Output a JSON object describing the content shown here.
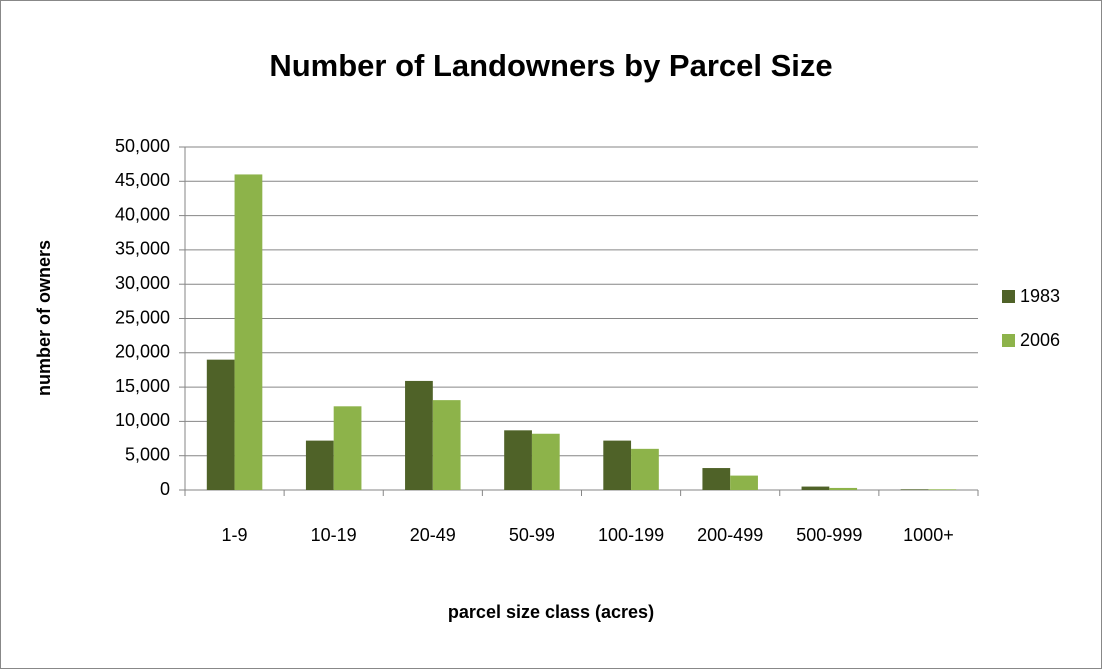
{
  "chart_data": {
    "type": "bar",
    "title": "Number of Landowners by Parcel Size",
    "x_label": "parcel size class (acres)",
    "y_label": "number of owners",
    "categories": [
      "1-9",
      "10-19",
      "20-49",
      "50-99",
      "100-199",
      "200-499",
      "500-999",
      "1000+"
    ],
    "series": [
      {
        "name": "1983",
        "color": "#4f6228",
        "values": [
          19000,
          7200,
          15900,
          8700,
          7200,
          3200,
          500,
          100
        ]
      },
      {
        "name": "2006",
        "color": "#8db34a",
        "values": [
          46000,
          12200,
          13100,
          8200,
          6000,
          2100,
          300,
          100
        ]
      }
    ],
    "ylim": [
      0,
      50000
    ],
    "yticks": [
      0,
      {
        "value": 5000,
        "label": "5,000"
      },
      {
        "value": 10000,
        "label": "10,000"
      },
      {
        "value": 15000,
        "label": "15,000"
      },
      {
        "value": 20000,
        "label": "20,000"
      },
      {
        "value": 25000,
        "label": "25,000"
      },
      {
        "value": 30000,
        "label": "30,000"
      },
      {
        "value": 35000,
        "label": "35,000"
      },
      {
        "value": 40000,
        "label": "40,000"
      },
      {
        "value": 45000,
        "label": "45,000"
      },
      {
        "value": 50000,
        "label": "50,000"
      }
    ],
    "grid": true,
    "legend": "right"
  }
}
